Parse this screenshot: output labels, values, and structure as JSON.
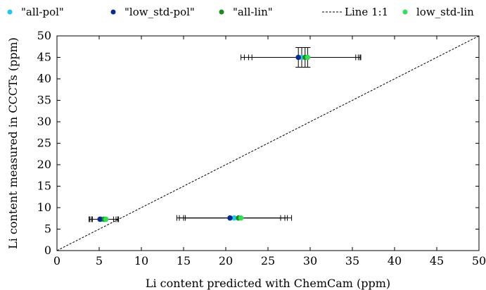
{
  "chart_data": {
    "type": "scatter",
    "xlabel": "Li content predicted with ChemCam (ppm)",
    "ylabel": "Li content measured in CCCTs (ppm)",
    "xlim": [
      0,
      50
    ],
    "ylim": [
      0,
      50
    ],
    "xticks": [
      0,
      5,
      10,
      15,
      20,
      25,
      30,
      35,
      40,
      45,
      50
    ],
    "yticks": [
      0,
      5,
      10,
      15,
      20,
      25,
      30,
      35,
      40,
      45,
      50
    ],
    "grid": false,
    "legend_position": "top",
    "series": [
      {
        "name": "\"all-pol\"",
        "color": "#22c8e8",
        "marker": "circle",
        "points": [
          {
            "x": 5.3,
            "y": 7.3,
            "xerr": [
              1.4,
              1.7
            ]
          },
          {
            "x": 21.0,
            "y": 7.6,
            "xerr": [
              6.5,
              6.0
            ]
          },
          {
            "x": 29.0,
            "y": 45.0,
            "xerr": [
              6.8,
              6.7
            ],
            "yerr": [
              2.3,
              2.3
            ]
          }
        ]
      },
      {
        "name": "\"low_std-pol\"",
        "color": "#0a2a8c",
        "marker": "circle",
        "points": [
          {
            "x": 5.1,
            "y": 7.3,
            "xerr": [
              1.3,
              1.6
            ]
          },
          {
            "x": 20.5,
            "y": 7.6,
            "xerr": [
              6.3,
              6.0
            ]
          },
          {
            "x": 28.6,
            "y": 45.0,
            "xerr": [
              6.8,
              6.8
            ],
            "yerr": [
              2.3,
              2.3
            ]
          }
        ]
      },
      {
        "name": "\"all-lin\"",
        "color": "#1a8a1a",
        "marker": "circle",
        "points": [
          {
            "x": 5.6,
            "y": 7.3,
            "xerr": [
              1.5,
              1.6
            ]
          },
          {
            "x": 21.5,
            "y": 7.6,
            "xerr": [
              6.5,
              5.8
            ]
          },
          {
            "x": 29.4,
            "y": 45.0,
            "xerr": [
              6.7,
              6.5
            ],
            "yerr": [
              2.3,
              2.3
            ]
          }
        ]
      },
      {
        "name": "Line 1:1",
        "color": "#000000",
        "style": "dashed",
        "line": [
          [
            0,
            0
          ],
          [
            50,
            50
          ]
        ]
      },
      {
        "name": "low_std-lin",
        "color": "#33dd55",
        "marker": "circle",
        "points": [
          {
            "x": 5.8,
            "y": 7.3,
            "xerr": [
              1.6,
              1.5
            ]
          },
          {
            "x": 21.8,
            "y": 7.6,
            "xerr": [
              6.6,
              6.0
            ]
          },
          {
            "x": 29.7,
            "y": 45.0,
            "xerr": [
              6.6,
              6.3
            ],
            "yerr": [
              2.3,
              2.3
            ]
          }
        ]
      }
    ]
  }
}
